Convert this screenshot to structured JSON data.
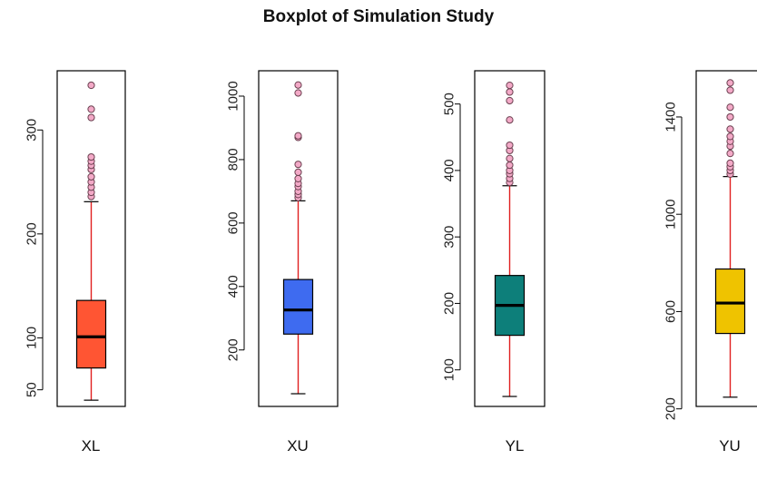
{
  "chart_data": {
    "type": "boxplot",
    "title": "Boxplot of Simulation Study",
    "grid": false,
    "whisker_color": "#e02020",
    "outlier_fill": "#f3a9c7",
    "panels": [
      {
        "name": "XL",
        "fill": "#ff5533",
        "ylim": [
          34,
          357
        ],
        "ticks": [
          50,
          100,
          200,
          300
        ],
        "min": 40,
        "q1": 71,
        "median": 101,
        "q3": 136,
        "max": 231,
        "outliers": [
          236,
          240,
          245,
          250,
          255,
          262,
          266,
          270,
          274,
          312,
          320,
          343
        ]
      },
      {
        "name": "XU",
        "fill": "#3e6bf0",
        "ylim": [
          22,
          1080
        ],
        "ticks": [
          200,
          400,
          600,
          800,
          1000
        ],
        "min": 62,
        "q1": 250,
        "median": 326,
        "q3": 422,
        "max": 670,
        "outliers": [
          680,
          690,
          700,
          715,
          725,
          740,
          760,
          785,
          870,
          875,
          1010,
          1035
        ]
      },
      {
        "name": "YL",
        "fill": "#0d7f7a",
        "ylim": [
          45,
          550
        ],
        "ticks": [
          100,
          200,
          300,
          400,
          500
        ],
        "min": 60,
        "q1": 152,
        "median": 197,
        "q3": 242,
        "max": 377,
        "outliers": [
          382,
          388,
          395,
          400,
          408,
          418,
          430,
          438,
          476,
          505,
          518,
          528
        ]
      },
      {
        "name": "YU",
        "fill": "#efc300",
        "ylim": [
          210,
          1590
        ],
        "ticks": [
          200,
          600,
          1000,
          1400
        ],
        "min": 248,
        "q1": 510,
        "median": 635,
        "q3": 775,
        "max": 1155,
        "outliers": [
          1165,
          1180,
          1195,
          1210,
          1250,
          1280,
          1300,
          1320,
          1350,
          1400,
          1440,
          1510,
          1540
        ]
      }
    ]
  }
}
